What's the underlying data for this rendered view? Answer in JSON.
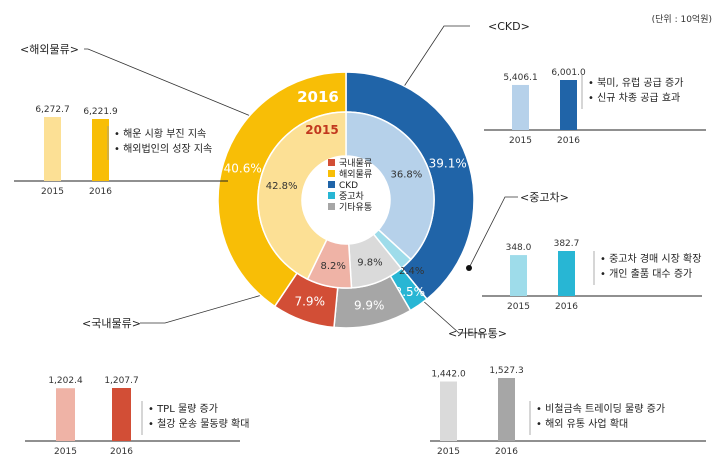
{
  "unit_label": "(단위 : 10억원)",
  "colors": {
    "domestic": "#D24E36",
    "domestic_light": "#EFB3A6",
    "overseas": "#F8BE06",
    "overseas_light": "#FCE095",
    "ckd": "#2064A8",
    "ckd_light": "#B6D1EA",
    "used_car": "#28B6D4",
    "used_car_light": "#9EDCEA",
    "other": "#A6A6A6",
    "other_light": "#DADADA"
  },
  "chart_data": {
    "type": "pie",
    "donut_outer": {
      "year": "2016",
      "slices": [
        {
          "key": "ckd",
          "value": 39.1,
          "label": "39.1%"
        },
        {
          "key": "used_car",
          "value": 2.5,
          "label": "2.5%"
        },
        {
          "key": "other",
          "value": 9.9,
          "label": "9.9%"
        },
        {
          "key": "domestic",
          "value": 7.9,
          "label": "7.9%"
        },
        {
          "key": "overseas",
          "value": 40.6,
          "label": "40.6%"
        }
      ]
    },
    "donut_inner": {
      "year": "2015",
      "slices": [
        {
          "key": "ckd",
          "value": 36.8,
          "label": "36.8%"
        },
        {
          "key": "used_car",
          "value": 2.4,
          "label": "2.4%"
        },
        {
          "key": "other",
          "value": 9.8,
          "label": "9.8%"
        },
        {
          "key": "domestic",
          "value": 8.2,
          "label": "8.2%"
        },
        {
          "key": "overseas",
          "value": 42.8,
          "label": "42.8%"
        }
      ]
    },
    "legend": [
      {
        "key": "domestic",
        "label": "국내물류"
      },
      {
        "key": "overseas",
        "label": "해외물류"
      },
      {
        "key": "ckd",
        "label": "CKD"
      },
      {
        "key": "used_car",
        "label": "중고차"
      },
      {
        "key": "other",
        "label": "기타유통"
      }
    ],
    "panels": [
      {
        "key": "overseas",
        "title": "<해외물류>",
        "categories": [
          "2015",
          "2016"
        ],
        "values": [
          6272.7,
          6221.9
        ],
        "value_labels": [
          "6,272.7",
          "6,221.9"
        ],
        "notes": [
          "해운 시황 부진 지속",
          "해외법인의 성장 지속"
        ]
      },
      {
        "key": "ckd",
        "title": "<CKD>",
        "categories": [
          "2015",
          "2016"
        ],
        "values": [
          5406.1,
          6001.0
        ],
        "value_labels": [
          "5,406.1",
          "6,001.0"
        ],
        "notes": [
          "북미, 유럽 공급 증가",
          "신규 차종 공급 효과"
        ]
      },
      {
        "key": "used_car",
        "title": "<중고차>",
        "categories": [
          "2015",
          "2016"
        ],
        "values": [
          348.0,
          382.7
        ],
        "value_labels": [
          "348.0",
          "382.7"
        ],
        "notes": [
          "중고차 경매 시장 확장",
          "개인 출품 대수 증가"
        ]
      },
      {
        "key": "domestic",
        "title": "<국내물류>",
        "categories": [
          "2015",
          "2016"
        ],
        "values": [
          1202.4,
          1207.7
        ],
        "value_labels": [
          "1,202.4",
          "1,207.7"
        ],
        "notes": [
          "TPL 물량 증가",
          "철강 운송 물동량 확대"
        ]
      },
      {
        "key": "other",
        "title": "<기타유통>",
        "categories": [
          "2015",
          "2016"
        ],
        "values": [
          1442.0,
          1527.3
        ],
        "value_labels": [
          "1,442.0",
          "1,527.3"
        ],
        "notes": [
          "비철금속 트레이딩 물량 증가",
          "해외 유통 사업 확대"
        ]
      }
    ]
  }
}
